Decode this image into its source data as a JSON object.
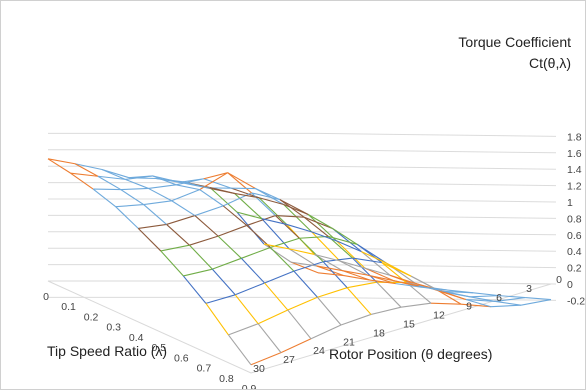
{
  "chart_data": {
    "type": "surface",
    "x_axis": {
      "label": "Tip Speed Ratio (λ)",
      "ticks": [
        "0",
        "0.1",
        "0.2",
        "0.3",
        "0.4",
        "0.5",
        "0.6",
        "0.7",
        "0.8",
        "0.9"
      ]
    },
    "y_axis": {
      "label": "Rotor Position (θ degrees)",
      "ticks": [
        "30",
        "27",
        "24",
        "21",
        "18",
        "15",
        "12",
        "9",
        "6",
        "3",
        "0"
      ]
    },
    "z_axis": {
      "label_line1": "Torque Coefficient",
      "label_line2": "Ct(θ,λ)",
      "ticks": [
        "-0.2",
        "0",
        "0.2",
        "0.4",
        "0.6",
        "0.8",
        "1",
        "1.2",
        "1.4",
        "1.6",
        "1.8"
      ],
      "range": [
        -0.2,
        1.8
      ]
    },
    "band_colors": [
      "#6faadc",
      "#ed7d31",
      "#a5a5a5",
      "#ffc000",
      "#4472c4",
      "#70ad47",
      "#8c5a3c"
    ],
    "band_limits": [
      -0.2,
      0,
      0.2,
      0.4,
      0.6,
      0.8,
      1.0,
      1.2,
      1.4,
      1.6,
      1.8
    ],
    "gridlines": true,
    "z_values": [
      [
        1.49,
        1.43,
        1.36,
        1.26,
        1.25,
        1.21,
        1.14,
        0.84,
        0.45,
        0.23,
        0.1
      ],
      [
        1.44,
        1.39,
        1.34,
        1.37,
        1.28,
        1.2,
        1.12,
        0.8,
        0.42,
        0.2,
        0.07
      ],
      [
        1.37,
        1.34,
        1.33,
        1.35,
        1.4,
        1.26,
        1.12,
        0.77,
        0.38,
        0.16,
        0.02
      ],
      [
        1.28,
        1.27,
        1.28,
        1.38,
        1.55,
        1.32,
        1.09,
        0.72,
        0.33,
        0.12,
        -0.02
      ],
      [
        1.14,
        1.14,
        1.2,
        1.27,
        1.38,
        1.25,
        1.02,
        0.65,
        0.27,
        0.07,
        -0.06
      ],
      [
        0.99,
        1.0,
        1.05,
        1.12,
        1.18,
        1.1,
        0.9,
        0.56,
        0.21,
        0.02,
        -0.09
      ],
      [
        0.81,
        0.82,
        0.88,
        0.94,
        0.98,
        0.93,
        0.76,
        0.46,
        0.14,
        -0.03,
        -0.12
      ],
      [
        0.6,
        0.62,
        0.68,
        0.74,
        0.77,
        0.73,
        0.59,
        0.34,
        0.07,
        -0.08,
        -0.15
      ],
      [
        0.34,
        0.38,
        0.45,
        0.51,
        0.53,
        0.5,
        0.4,
        0.22,
        0.0,
        -0.12,
        -0.17
      ],
      [
        0.1,
        0.14,
        0.2,
        0.26,
        0.28,
        0.26,
        0.2,
        0.08,
        -0.06,
        -0.15,
        -0.19
      ]
    ]
  }
}
